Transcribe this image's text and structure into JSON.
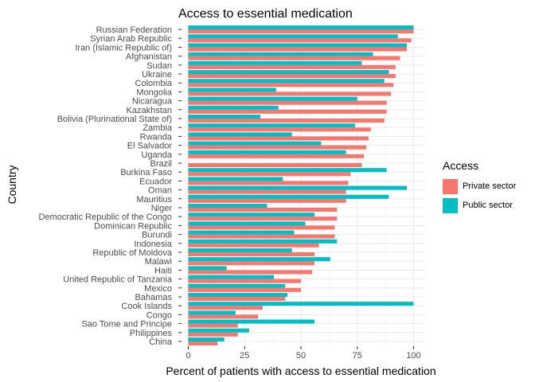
{
  "chart_data": {
    "type": "bar",
    "orientation": "horizontal",
    "title": "Access to essential medication",
    "xlabel": "Percent of patients with access to essential medication",
    "ylabel": "Country",
    "xlim": [
      0,
      100
    ],
    "xticks": [
      "0",
      "25",
      "50",
      "75",
      "100"
    ],
    "grid": true,
    "legend_position": "right",
    "legend_title": "Access",
    "categories": [
      "Russian Federation",
      "Syrian Arab Republic",
      "Iran (Islamic Republic of)",
      "Afghanistan",
      "Sudan",
      "Ukraine",
      "Colombia",
      "Mongolia",
      "Nicaragua",
      "Kazakhstan",
      "Bolivia (Plurinational State of)",
      "Zambia",
      "Rwanda",
      "El Salvador",
      "Uganda",
      "Brazil",
      "Burkina Faso",
      "Ecuador",
      "Oman",
      "Mauritius",
      "Niger",
      "Democratic Republic of the Congo",
      "Dominican Republic",
      "Burundi",
      "Indonesia",
      "Republic of Moldova",
      "Malawi",
      "Haiti",
      "United Republic of Tanzania",
      "Mexico",
      "Bahamas",
      "Cook Islands",
      "Congo",
      "Sao Tome and Principe",
      "Philippines",
      "China"
    ],
    "series": [
      {
        "name": "Private sector",
        "color": "#F8766D",
        "values": [
          100,
          99,
          97,
          94,
          92,
          92,
          91,
          90,
          88,
          88,
          87,
          81,
          80,
          79,
          78,
          77,
          72,
          71,
          70,
          70,
          66,
          66,
          65,
          65,
          58,
          56,
          56,
          55,
          50,
          50,
          43,
          33,
          31,
          22,
          22,
          13
        ]
      },
      {
        "name": "Public sector",
        "color": "#00BFC4",
        "values": [
          100,
          93,
          97,
          82,
          77,
          89,
          87,
          39,
          75,
          40,
          32,
          74,
          46,
          59,
          70,
          null,
          88,
          42,
          97,
          89,
          35,
          56,
          52,
          47,
          66,
          46,
          63,
          17,
          38,
          43,
          44,
          100,
          21,
          56,
          27,
          16
        ]
      }
    ]
  }
}
